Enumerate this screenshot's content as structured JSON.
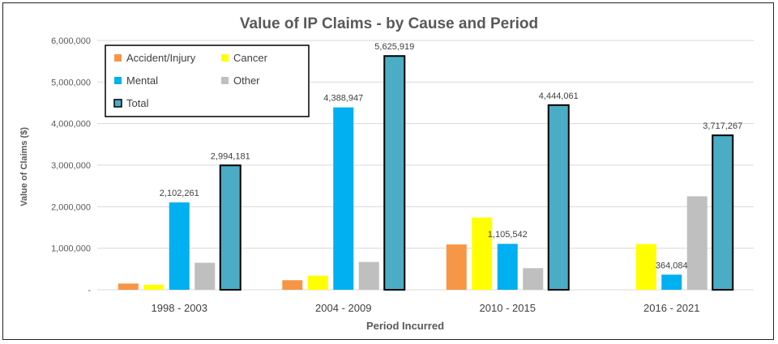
{
  "chart_data": {
    "type": "bar",
    "title": "Value of IP Claims - by Cause and Period",
    "xlabel": "Period Incurred",
    "ylabel": "Value of Claims ($)",
    "ylim": [
      0,
      6000000
    ],
    "y_ticks": [
      0,
      1000000,
      2000000,
      3000000,
      4000000,
      5000000,
      6000000
    ],
    "y_tick_labels": [
      "-",
      "1,000,000",
      "2,000,000",
      "3,000,000",
      "4,000,000",
      "5,000,000",
      "6,000,000"
    ],
    "grid": true,
    "legend_position": "top-left",
    "categories": [
      "1998 - 2003",
      "2004 - 2009",
      "2010 - 2015",
      "2016 - 2021"
    ],
    "series": [
      {
        "name": "Accident/Injury",
        "color": "#f79646",
        "values": [
          150000,
          230000,
          1090000,
          0
        ],
        "labels": [
          "",
          "",
          "",
          ""
        ]
      },
      {
        "name": "Cancer",
        "color": "#ffff00",
        "values": [
          120000,
          340000,
          1740000,
          1100000
        ],
        "labels": [
          "",
          "",
          "",
          ""
        ]
      },
      {
        "name": "Mental",
        "color": "#00b0f0",
        "values": [
          2102261,
          4388947,
          1105542,
          364084
        ],
        "labels": [
          "2,102,261",
          "4,388,947",
          "1,105,542",
          "364,084"
        ]
      },
      {
        "name": "Other",
        "color": "#bfbfbf",
        "values": [
          650000,
          670000,
          520000,
          2250000
        ],
        "labels": [
          "",
          "",
          "",
          ""
        ]
      },
      {
        "name": "Total",
        "color": "#4bacc6",
        "outline": "#000000",
        "values": [
          2994181,
          5625919,
          4444061,
          3717267
        ],
        "labels": [
          "2,994,181",
          "5,625,919",
          "4,444,061",
          "3,717,267"
        ]
      }
    ]
  }
}
